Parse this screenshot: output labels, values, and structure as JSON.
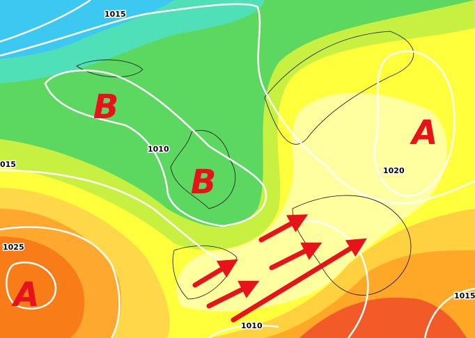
{
  "map": {
    "pressure_centers": [
      {
        "label": "B"
      },
      {
        "label": "B"
      },
      {
        "label": "A"
      },
      {
        "label": "A"
      }
    ],
    "isobar_labels": [
      "1015",
      "1010",
      "015",
      "1025",
      "1020",
      "1015",
      "1010"
    ]
  }
}
